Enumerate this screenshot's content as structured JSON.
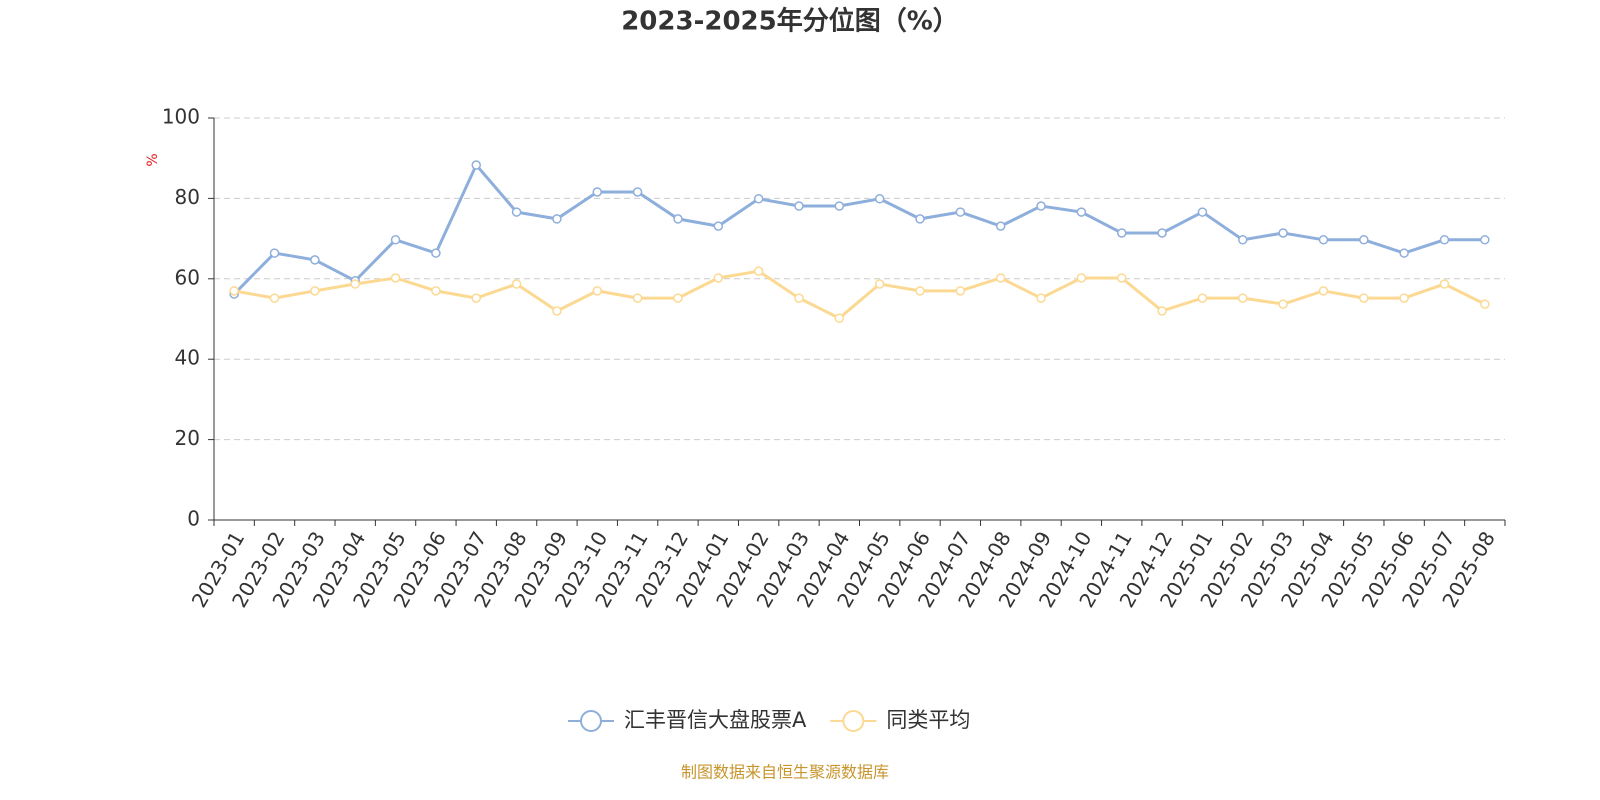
{
  "chart_data": {
    "type": "line",
    "title": "2023-2025年分位图（%）",
    "y_label": "%",
    "source": "制图数据来自恒生聚源数据库",
    "categories": [
      "2023-01",
      "2023-02",
      "2023-03",
      "2023-04",
      "2023-05",
      "2023-06",
      "2023-07",
      "2023-08",
      "2023-09",
      "2023-10",
      "2023-11",
      "2023-12",
      "2024-01",
      "2024-02",
      "2024-03",
      "2024-04",
      "2024-05",
      "2024-06",
      "2024-07",
      "2024-08",
      "2024-09",
      "2024-10",
      "2024-11",
      "2024-12",
      "2025-01",
      "2025-02",
      "2025-03",
      "2025-04",
      "2025-05",
      "2025-06",
      "2025-07",
      "2025-08"
    ],
    "series": [
      {
        "name": "汇丰晋信大盘股票A",
        "color": "#8eaedb",
        "values": [
          56.2,
          66.4,
          64.7,
          59.5,
          69.7,
          66.4,
          88.3,
          76.6,
          74.9,
          81.6,
          81.6,
          74.9,
          73.1,
          79.9,
          78.1,
          78.1,
          79.9,
          74.9,
          76.6,
          73.1,
          78.1,
          76.6,
          71.4,
          71.4,
          76.6,
          69.7,
          71.4,
          69.7,
          69.7,
          66.4,
          69.7,
          69.7
        ]
      },
      {
        "name": "同类平均",
        "color": "#fcd993",
        "values": [
          57.0,
          55.2,
          57.0,
          58.7,
          60.2,
          57.0,
          55.2,
          58.7,
          52.0,
          57.0,
          55.2,
          55.2,
          60.2,
          61.9,
          55.2,
          50.2,
          58.7,
          57.0,
          57.0,
          60.2,
          55.2,
          60.2,
          60.2,
          52.0,
          55.2,
          55.2,
          53.7,
          57.0,
          55.2,
          55.2,
          58.7,
          53.7
        ]
      }
    ],
    "ylim": [
      0,
      100
    ],
    "yticks": [
      0,
      20,
      40,
      60,
      80,
      100
    ],
    "grid": true
  }
}
